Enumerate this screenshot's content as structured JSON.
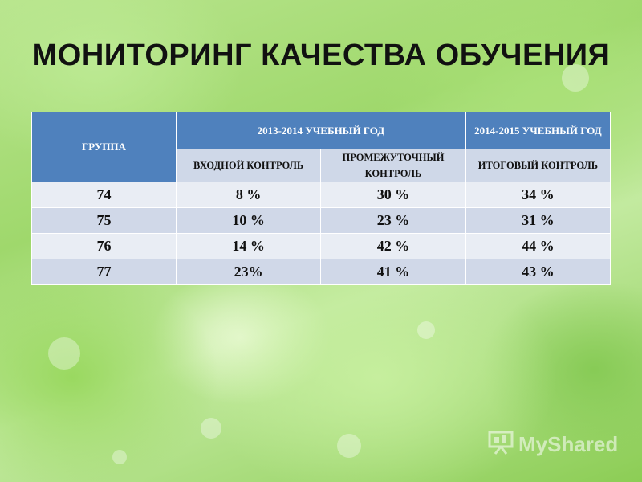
{
  "slide": {
    "title": "МОНИТОРИНГ КАЧЕСТВА ОБУЧЕНИЯ"
  },
  "table": {
    "group_header": "ГРУППА",
    "year1_header": "2013-2014 УЧЕБНЫЙ ГОД",
    "year2_header": "2014-2015 УЧЕБНЫЙ ГОД",
    "sub_headers": [
      "ВХОДНОЙ КОНТРОЛЬ",
      "ПРОМЕЖУТОЧНЫЙ КОНТРОЛЬ",
      "ИТОГОВЫЙ КОНТРОЛЬ"
    ],
    "rows": [
      [
        "74",
        "8 %",
        "30 %",
        "34 %"
      ],
      [
        "75",
        "10 %",
        "23 %",
        "31 %"
      ],
      [
        "76",
        "14 %",
        "42 %",
        "44 %"
      ],
      [
        "77",
        "23%",
        "41 %",
        "43 %"
      ]
    ]
  },
  "watermark": {
    "text": "MyShared",
    "icon": "presentation-board-icon"
  },
  "colors": {
    "header_blue": "#4f81bd",
    "subheader": "#cfd8e8",
    "row_light": "#e9edf4",
    "row_dark": "#d0d8e8"
  }
}
